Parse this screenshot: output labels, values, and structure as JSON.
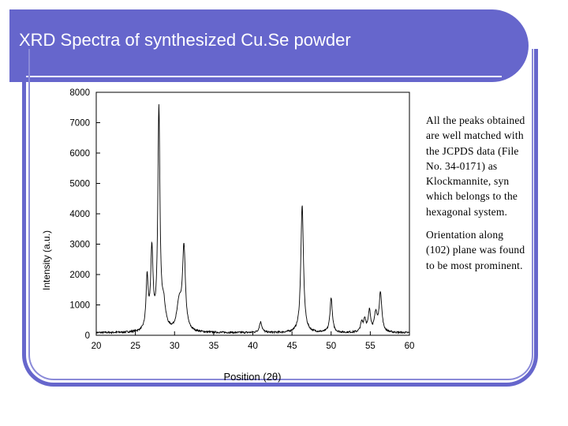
{
  "slide": {
    "title": "XRD Spectra of synthesized Cu.Se powder",
    "paragraph1": "All the peaks obtained are well matched with the JCPDS data (File No. 34-0171) as Klockmannite, syn which belongs to the hexagonal system.",
    "paragraph2": "Orientation along (102) plane was found to be most prominent."
  },
  "colors": {
    "accent": "#6666cc"
  },
  "chart_data": {
    "type": "line",
    "xlabel": "Position (2θ)",
    "ylabel": "Intensity (a.u.)",
    "xlim": [
      20,
      60
    ],
    "ylim": [
      0,
      8000
    ],
    "xticks": [
      20,
      25,
      30,
      35,
      40,
      45,
      50,
      55,
      60
    ],
    "yticks": [
      0,
      1000,
      2000,
      3000,
      4000,
      5000,
      6000,
      7000,
      8000
    ],
    "peaks": [
      {
        "x": 26.5,
        "y": 1700,
        "w": 0.16
      },
      {
        "x": 27.1,
        "y": 2600,
        "w": 0.18
      },
      {
        "x": 28.0,
        "y": 7200,
        "w": 0.16
      },
      {
        "x": 28.6,
        "y": 800,
        "w": 0.3
      },
      {
        "x": 31.2,
        "y": 2700,
        "w": 0.22
      },
      {
        "x": 30.6,
        "y": 900,
        "w": 0.35
      },
      {
        "x": 41.0,
        "y": 350,
        "w": 0.2
      },
      {
        "x": 46.3,
        "y": 4200,
        "w": 0.2
      },
      {
        "x": 50.0,
        "y": 1150,
        "w": 0.18
      },
      {
        "x": 53.9,
        "y": 300,
        "w": 0.18
      },
      {
        "x": 54.3,
        "y": 400,
        "w": 0.18
      },
      {
        "x": 54.9,
        "y": 700,
        "w": 0.18
      },
      {
        "x": 55.7,
        "y": 600,
        "w": 0.2
      },
      {
        "x": 56.3,
        "y": 1300,
        "w": 0.2
      }
    ],
    "baseline": 80,
    "grid": false
  }
}
